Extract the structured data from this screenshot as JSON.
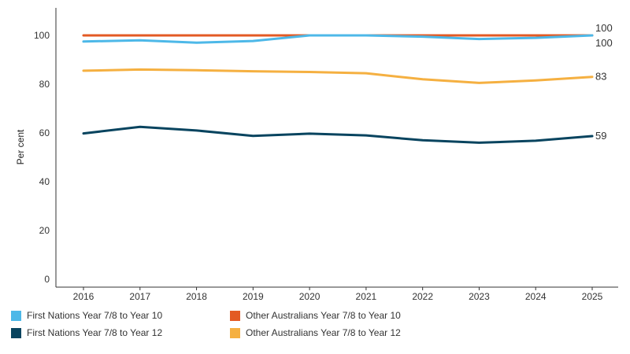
{
  "chart_data": {
    "type": "line",
    "x": [
      "2016",
      "2017",
      "2018",
      "2019",
      "2020",
      "2021",
      "2022",
      "2023",
      "2024",
      "2025"
    ],
    "ylabel": "Per cent",
    "ylim": [
      0,
      110
    ],
    "yticks": [
      0,
      20,
      40,
      60,
      80,
      100
    ],
    "grid": false,
    "legend_position": "bottom",
    "series": [
      {
        "name": "Other Australians Year 7/8 to Year 10",
        "color": "#E35A24",
        "values": [
          100,
          100,
          100,
          100,
          100,
          100,
          100,
          100,
          100,
          100
        ],
        "end_label": "100"
      },
      {
        "name": "First Nations Year 7/8 to Year 10",
        "color": "#4DB8E8",
        "values": [
          97.5,
          98,
          97,
          97.7,
          100,
          100,
          99.5,
          98.5,
          99,
          100
        ],
        "end_label": "100"
      },
      {
        "name": "Other Australians Year 7/8 to Year 12",
        "color": "#F5B041",
        "values": [
          85.5,
          86,
          85.7,
          85.3,
          85,
          84.5,
          82,
          80.5,
          81.5,
          83
        ],
        "end_label": "83"
      },
      {
        "name": "First Nations Year 7/8 to Year 12",
        "color": "#08445F",
        "values": [
          59.8,
          62.5,
          61,
          58.8,
          59.7,
          59,
          57,
          56,
          56.8,
          58.7
        ],
        "end_label": "59"
      }
    ]
  },
  "legend": [
    {
      "label": "First Nations Year 7/8 to Year 10",
      "color": "#4DB8E8"
    },
    {
      "label": "Other Australians Year 7/8 to Year 10",
      "color": "#E35A24"
    },
    {
      "label": "First Nations Year 7/8 to Year 12",
      "color": "#08445F"
    },
    {
      "label": "Other Australians Year 7/8 to Year 12",
      "color": "#F5B041"
    }
  ]
}
